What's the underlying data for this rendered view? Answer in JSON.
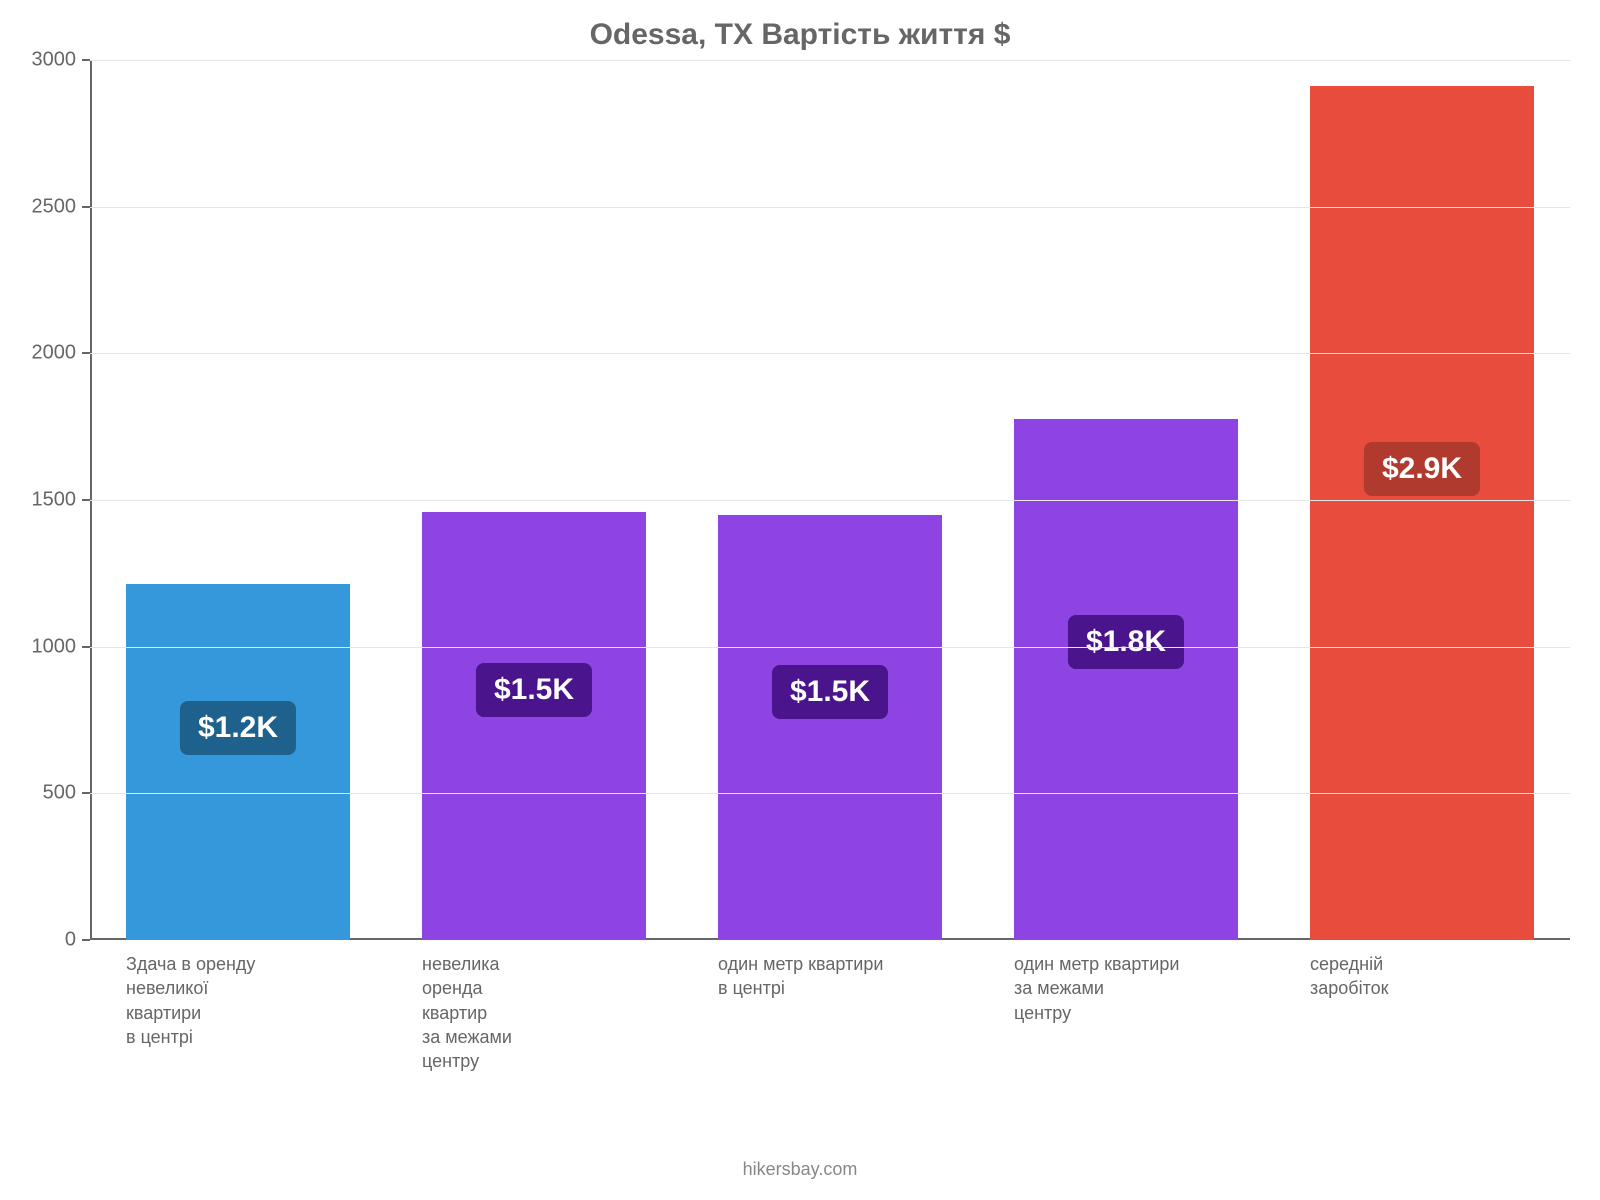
{
  "chart": {
    "type": "bar",
    "title": "Odessa, TX Вартість життя $",
    "title_color": "#666666",
    "title_fontsize": 30,
    "footer": "hikersbay.com",
    "footer_color": "#888888",
    "footer_fontsize": 18,
    "background_color": "#ffffff",
    "axis_color": "#666666",
    "grid_color": "#e6e6e6",
    "tick_label_color": "#666666",
    "tick_label_fontsize": 20,
    "x_label_fontsize": 18,
    "ylim": [
      0,
      3000
    ],
    "ytick_step": 500,
    "bar_width_ratio": 0.76,
    "bars": [
      {
        "category_lines": [
          "Здача в оренду",
          "невеликої",
          "квартири",
          "в центрі"
        ],
        "value": 1215,
        "value_label": "$1.2K",
        "bar_color": "#3498db",
        "badge_bg": "#1f618d"
      },
      {
        "category_lines": [
          "невелика",
          "оренда",
          "квартир",
          "за межами",
          "центру"
        ],
        "value": 1460,
        "value_label": "$1.5K",
        "bar_color": "#8e44e3",
        "badge_bg": "#4a148c"
      },
      {
        "category_lines": [
          "один метр квартири",
          "в центрі"
        ],
        "value": 1450,
        "value_label": "$1.5K",
        "bar_color": "#8e44e3",
        "badge_bg": "#4a148c"
      },
      {
        "category_lines": [
          "один метр квартири",
          "за межами",
          "центру"
        ],
        "value": 1775,
        "value_label": "$1.8K",
        "bar_color": "#8e44e3",
        "badge_bg": "#4a148c"
      },
      {
        "category_lines": [
          "середній",
          "заробіток"
        ],
        "value": 2910,
        "value_label": "$2.9K",
        "bar_color": "#e74c3c",
        "badge_bg": "#b03a2e"
      }
    ]
  }
}
